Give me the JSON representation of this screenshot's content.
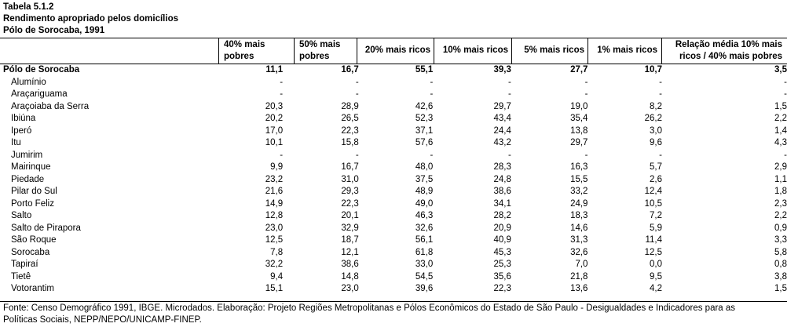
{
  "title": {
    "line1": "Tabela 5.1.2",
    "line2": "Rendimento apropriado pelos domicílios",
    "line3": "Pólo de Sorocaba, 1991"
  },
  "headers": {
    "c1a": "40% mais",
    "c1b": "pobres",
    "c2a": "50% mais",
    "c2b": "pobres",
    "c3": "20% mais ricos",
    "c4": "10% mais ricos",
    "c5": "5% mais ricos",
    "c6": "1% mais ricos",
    "c7a": "Relação média 10% mais",
    "c7b": "ricos / 40% mais pobres"
  },
  "rows": [
    {
      "name": "Pólo de Sorocaba",
      "v": [
        "11,1",
        "16,7",
        "55,1",
        "39,3",
        "27,7",
        "10,7",
        "3,5"
      ]
    },
    {
      "name": "Alumínio",
      "v": [
        "-",
        "-",
        "-",
        "-",
        "-",
        "-",
        "-"
      ]
    },
    {
      "name": "Araçariguama",
      "v": [
        "-",
        "-",
        "-",
        "-",
        "-",
        "-",
        "-"
      ]
    },
    {
      "name": "Araçoiaba da Serra",
      "v": [
        "20,3",
        "28,9",
        "42,6",
        "29,7",
        "19,0",
        "8,2",
        "1,5"
      ]
    },
    {
      "name": "Ibiúna",
      "v": [
        "20,2",
        "26,5",
        "52,3",
        "43,4",
        "35,4",
        "26,2",
        "2,2"
      ]
    },
    {
      "name": "Iperó",
      "v": [
        "17,0",
        "22,3",
        "37,1",
        "24,4",
        "13,8",
        "3,0",
        "1,4"
      ]
    },
    {
      "name": "Itu",
      "v": [
        "10,1",
        "15,8",
        "57,6",
        "43,2",
        "29,7",
        "9,6",
        "4,3"
      ]
    },
    {
      "name": "Jumirim",
      "v": [
        "-",
        "-",
        "-",
        "-",
        "-",
        "-",
        "-"
      ]
    },
    {
      "name": "Mairinque",
      "v": [
        "9,9",
        "16,7",
        "48,0",
        "28,3",
        "16,3",
        "5,7",
        "2,9"
      ]
    },
    {
      "name": "Piedade",
      "v": [
        "23,2",
        "31,0",
        "37,5",
        "24,8",
        "15,5",
        "2,6",
        "1,1"
      ]
    },
    {
      "name": "Pilar do Sul",
      "v": [
        "21,6",
        "29,3",
        "48,9",
        "38,6",
        "33,2",
        "12,4",
        "1,8"
      ]
    },
    {
      "name": "Porto Feliz",
      "v": [
        "14,9",
        "22,3",
        "49,0",
        "34,1",
        "24,9",
        "10,5",
        "2,3"
      ]
    },
    {
      "name": "Salto",
      "v": [
        "12,8",
        "20,1",
        "46,3",
        "28,2",
        "18,3",
        "7,2",
        "2,2"
      ]
    },
    {
      "name": "Salto de Pirapora",
      "v": [
        "23,0",
        "32,9",
        "32,6",
        "20,9",
        "14,6",
        "5,9",
        "0,9"
      ]
    },
    {
      "name": "São Roque",
      "v": [
        "12,5",
        "18,7",
        "56,1",
        "40,9",
        "31,3",
        "11,4",
        "3,3"
      ]
    },
    {
      "name": "Sorocaba",
      "v": [
        "7,8",
        "12,1",
        "61,8",
        "45,3",
        "32,6",
        "12,5",
        "5,8"
      ]
    },
    {
      "name": "Tapiraí",
      "v": [
        "32,2",
        "38,6",
        "33,0",
        "25,3",
        "7,0",
        "0,0",
        "0,8"
      ]
    },
    {
      "name": "Tietê",
      "v": [
        "9,4",
        "14,8",
        "54,5",
        "35,6",
        "21,8",
        "9,5",
        "3,8"
      ]
    },
    {
      "name": "Votorantim",
      "v": [
        "15,1",
        "23,0",
        "39,6",
        "22,3",
        "13,6",
        "4,2",
        "1,5"
      ]
    }
  ],
  "footer": {
    "line1": "Fonte: Censo Demográfico 1991, IBGE. Microdados. Elaboração: Projeto Regiões Metropolitanas e Pólos Econômicos do Estado de São Paulo - Desigualdades e Indicadores para as",
    "line2": "Políticas Sociais, NEPP/NEPO/UNICAMP-FINEP."
  }
}
